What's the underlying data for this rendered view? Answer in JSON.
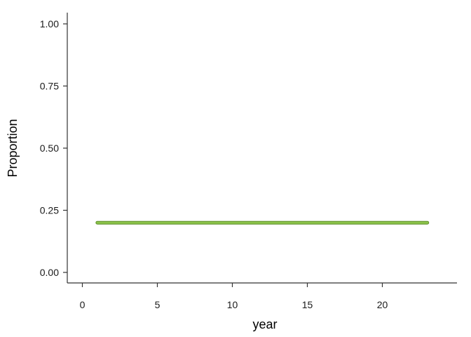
{
  "chart_data": {
    "type": "line",
    "xlabel": "year",
    "ylabel": "Proportion",
    "xlim": [
      -1,
      25
    ],
    "ylim": [
      0,
      1.0
    ],
    "x_ticks": [
      0,
      5,
      10,
      15,
      20
    ],
    "y_ticks": [
      0.0,
      0.25,
      0.5,
      0.75,
      1.0
    ],
    "x_tick_labels": [
      "0",
      "5",
      "10",
      "15",
      "20"
    ],
    "y_tick_labels": [
      "0.00",
      "0.25",
      "0.50",
      "0.75",
      "1.00"
    ],
    "grid": false,
    "series": [
      {
        "color": "#8bc34a",
        "x": [
          1,
          2,
          3,
          4,
          5,
          6,
          7,
          8,
          9,
          10,
          11,
          12,
          13,
          14,
          15,
          16,
          17,
          18,
          19,
          20,
          21,
          22,
          23
        ],
        "y": [
          0.2,
          0.2,
          0.2,
          0.2,
          0.2,
          0.2,
          0.2,
          0.2,
          0.2,
          0.2,
          0.2,
          0.2,
          0.2,
          0.2,
          0.2,
          0.2,
          0.2,
          0.2,
          0.2,
          0.2,
          0.2,
          0.2,
          0.2
        ]
      }
    ]
  }
}
